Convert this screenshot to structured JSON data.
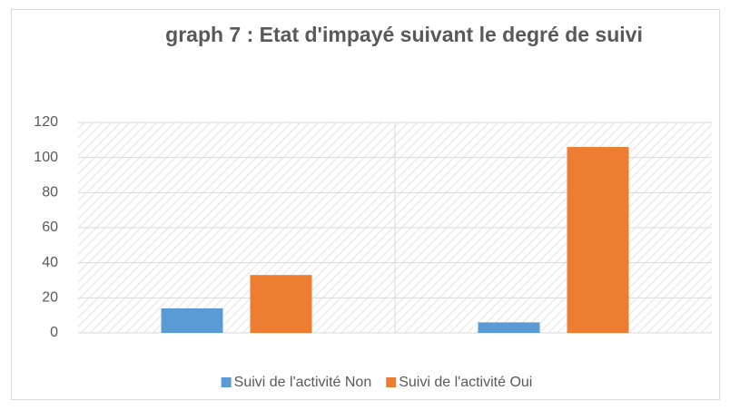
{
  "chart_data": {
    "type": "bar",
    "title": "graph 7 : Etat d'impayé suivant le degré de suivi",
    "categories": [
      null,
      null
    ],
    "series": [
      {
        "name": "Suivi de l'activité Non",
        "color": "#5b9bd5",
        "values": [
          14,
          6
        ]
      },
      {
        "name": "Suivi de l'activité Oui",
        "color": "#ed7d31",
        "values": [
          33,
          106
        ]
      }
    ],
    "ylim": [
      0,
      120
    ],
    "yticks": [
      0,
      20,
      40,
      60,
      80,
      100,
      120
    ],
    "grid": true,
    "legend": "bottom"
  }
}
